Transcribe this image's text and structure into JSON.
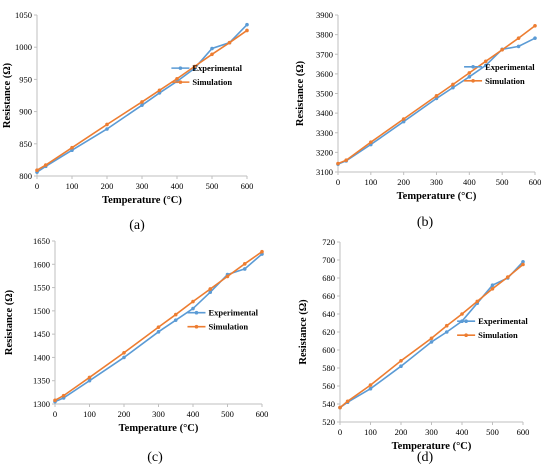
{
  "colors": {
    "experimental": "#5B9BD5",
    "simulation": "#ED7D31",
    "axis": "#BFBFBF"
  },
  "chart_data": [
    {
      "type": "line",
      "panel_label": "(a)",
      "xlabel": "Temperature (°C)",
      "ylabel": "Resistance (Ω)",
      "xlim": [
        0,
        600
      ],
      "ylim": [
        800,
        1050
      ],
      "xticks": [
        0,
        100,
        200,
        300,
        400,
        500,
        600
      ],
      "yticks": [
        800,
        850,
        900,
        950,
        1000,
        1050
      ],
      "legend_position": "right",
      "series": [
        {
          "name": "Experimental",
          "color": "#5B9BD5",
          "points": [
            [
              0,
              806
            ],
            [
              25,
              815
            ],
            [
              100,
              840
            ],
            [
              200,
              873
            ],
            [
              300,
              910
            ],
            [
              350,
              929
            ],
            [
              400,
              947
            ],
            [
              450,
              967
            ],
            [
              500,
              998
            ],
            [
              550,
              1007
            ],
            [
              600,
              1035
            ]
          ]
        },
        {
          "name": "Simulation",
          "color": "#ED7D31",
          "points": [
            [
              0,
              809
            ],
            [
              25,
              817
            ],
            [
              100,
              844
            ],
            [
              200,
              880
            ],
            [
              300,
              915
            ],
            [
              350,
              933
            ],
            [
              400,
              951
            ],
            [
              450,
              970
            ],
            [
              500,
              989
            ],
            [
              550,
              1007
            ],
            [
              600,
              1026
            ]
          ]
        }
      ]
    },
    {
      "type": "line",
      "panel_label": "(b)",
      "xlabel": "Temperature (°C)",
      "ylabel": "Resistance (Ω)",
      "xlim": [
        0,
        600
      ],
      "ylim": [
        3100,
        3900
      ],
      "xticks": [
        0,
        100,
        200,
        300,
        400,
        500,
        600
      ],
      "yticks": [
        3100,
        3200,
        3300,
        3400,
        3500,
        3600,
        3700,
        3800,
        3900
      ],
      "legend_position": "right",
      "series": [
        {
          "name": "Experimental",
          "color": "#5B9BD5",
          "points": [
            [
              0,
              3140
            ],
            [
              25,
              3157
            ],
            [
              100,
              3240
            ],
            [
              200,
              3357
            ],
            [
              300,
              3475
            ],
            [
              350,
              3530
            ],
            [
              400,
              3585
            ],
            [
              450,
              3643
            ],
            [
              500,
              3725
            ],
            [
              550,
              3740
            ],
            [
              600,
              3782
            ]
          ]
        },
        {
          "name": "Simulation",
          "color": "#ED7D31",
          "points": [
            [
              0,
              3143
            ],
            [
              25,
              3160
            ],
            [
              100,
              3252
            ],
            [
              200,
              3370
            ],
            [
              300,
              3488
            ],
            [
              350,
              3546
            ],
            [
              400,
              3605
            ],
            [
              450,
              3664
            ],
            [
              500,
              3723
            ],
            [
              550,
              3782
            ],
            [
              600,
              3845
            ]
          ]
        }
      ]
    },
    {
      "type": "line",
      "panel_label": "(c)",
      "xlabel": "Temperature (°C)",
      "ylabel": "Resistance (Ω)",
      "xlim": [
        0,
        600
      ],
      "ylim": [
        1300,
        1650
      ],
      "xticks": [
        0,
        100,
        200,
        300,
        400,
        500,
        600
      ],
      "yticks": [
        1300,
        1350,
        1400,
        1450,
        1500,
        1550,
        1600,
        1650
      ],
      "legend_position": "right",
      "series": [
        {
          "name": "Experimental",
          "color": "#5B9BD5",
          "points": [
            [
              0,
              1305
            ],
            [
              25,
              1313
            ],
            [
              100,
              1350
            ],
            [
              200,
              1400
            ],
            [
              300,
              1455
            ],
            [
              350,
              1480
            ],
            [
              400,
              1505
            ],
            [
              450,
              1540
            ],
            [
              500,
              1578
            ],
            [
              550,
              1590
            ],
            [
              600,
              1622
            ]
          ]
        },
        {
          "name": "Simulation",
          "color": "#ED7D31",
          "points": [
            [
              0,
              1308
            ],
            [
              25,
              1318
            ],
            [
              100,
              1357
            ],
            [
              200,
              1410
            ],
            [
              300,
              1465
            ],
            [
              350,
              1492
            ],
            [
              400,
              1520
            ],
            [
              450,
              1547
            ],
            [
              500,
              1574
            ],
            [
              550,
              1601
            ],
            [
              600,
              1627
            ]
          ]
        }
      ]
    },
    {
      "type": "line",
      "panel_label": "(d)",
      "xlabel": "Temperature (°C)",
      "ylabel": "Resistance (Ω)",
      "xlim": [
        0,
        600
      ],
      "ylim": [
        520,
        720
      ],
      "xticks": [
        0,
        100,
        200,
        300,
        400,
        500,
        600
      ],
      "yticks": [
        520,
        540,
        560,
        580,
        600,
        620,
        640,
        660,
        680,
        700,
        720
      ],
      "legend_position": "right",
      "series": [
        {
          "name": "Experimental",
          "color": "#5B9BD5",
          "points": [
            [
              0,
              536
            ],
            [
              25,
              542
            ],
            [
              100,
              557
            ],
            [
              200,
              582
            ],
            [
              300,
              609
            ],
            [
              350,
              620
            ],
            [
              400,
              632
            ],
            [
              450,
              652
            ],
            [
              500,
              672
            ],
            [
              550,
              680
            ],
            [
              600,
              698
            ]
          ]
        },
        {
          "name": "Simulation",
          "color": "#ED7D31",
          "points": [
            [
              0,
              536
            ],
            [
              25,
              543
            ],
            [
              100,
              561
            ],
            [
              200,
              588
            ],
            [
              300,
              613
            ],
            [
              350,
              627
            ],
            [
              400,
              640
            ],
            [
              450,
              654
            ],
            [
              500,
              668
            ],
            [
              550,
              681
            ],
            [
              600,
              695
            ]
          ]
        }
      ]
    }
  ]
}
